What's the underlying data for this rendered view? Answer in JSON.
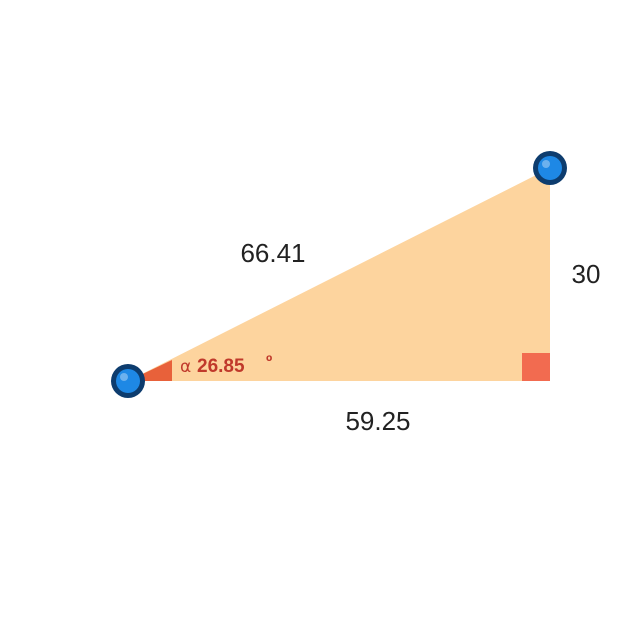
{
  "triangle": {
    "hypotenuse_label": "66.41",
    "vertical_leg_label": "30",
    "horizontal_leg_label": "59.25",
    "angle": {
      "symbol": "α",
      "value": "26.85",
      "unit": "º"
    }
  },
  "colors": {
    "fill": "#FDD49E",
    "right_angle_marker": "#F26B50",
    "angle_marker": "#E8613A",
    "angle_text": "#C0392B",
    "handle_fill": "#1E88E5",
    "handle_ring": "#0D3C6E"
  },
  "handles": [
    {
      "name": "left-vertex-handle"
    },
    {
      "name": "top-right-vertex-handle"
    }
  ]
}
